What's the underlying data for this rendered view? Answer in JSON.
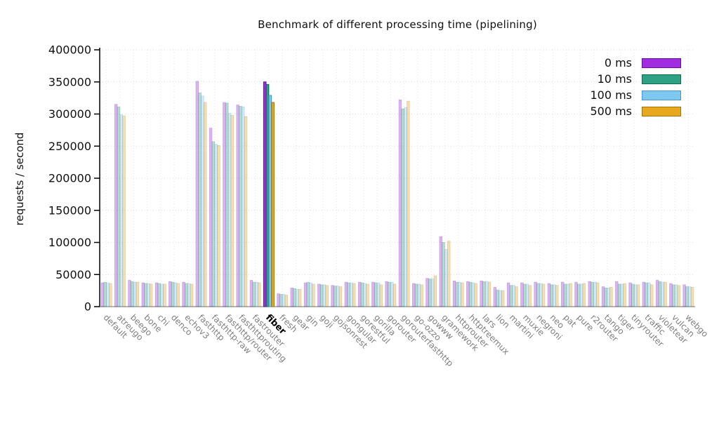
{
  "chart_data": {
    "type": "bar",
    "title": "Benchmark of different processing time (pipelining)",
    "ylabel": "requests / second",
    "ylim": [
      0,
      400000
    ],
    "ytick_step": 50000,
    "grid": true,
    "legend_position": "top-right",
    "highlight_category": "fiber",
    "categories": [
      "default",
      "atreugo",
      "beego",
      "bone",
      "chi",
      "denco",
      "echov3",
      "fasthttp",
      "fasthttp-raw",
      "fasthttp/router",
      "fasthttprouting",
      "fastrouter",
      "fiber",
      "fresh",
      "gear",
      "gin",
      "goji",
      "gojsonrest",
      "gongular",
      "gorestful",
      "gorilla",
      "gorouter",
      "gorouterfasthttp",
      "go-ozzo",
      "gowww",
      "gramework",
      "httprouter",
      "httptreemux",
      "lars",
      "lion",
      "martini",
      "muxie",
      "negroni",
      "neo",
      "pat",
      "pure",
      "r2router",
      "tango",
      "tiger",
      "tinyrouter",
      "traffic",
      "violetear",
      "vulcan",
      "webgo"
    ],
    "series": [
      {
        "name": "0 ms",
        "color": "#a22ce0",
        "border": "#6a0aa8",
        "values": [
          37000,
          315000,
          41000,
          37000,
          37000,
          39000,
          38000,
          351000,
          278000,
          318000,
          314000,
          41000,
          350000,
          20000,
          29000,
          37000,
          35000,
          33000,
          38000,
          38000,
          38000,
          39000,
          322000,
          36000,
          44000,
          109000,
          40000,
          39000,
          40000,
          30000,
          37000,
          37000,
          38000,
          36000,
          38000,
          38000,
          39000,
          31000,
          39000,
          37000,
          38000,
          41000,
          36000,
          34000
        ]
      },
      {
        "name": "10 ms",
        "color": "#2ea185",
        "border": "#0e6b4e",
        "values": [
          38000,
          311000,
          39000,
          36000,
          36000,
          38000,
          36000,
          333000,
          257000,
          317000,
          312000,
          38000,
          346000,
          19000,
          28000,
          38000,
          34000,
          32000,
          37000,
          37000,
          37000,
          38000,
          308000,
          35000,
          43000,
          100000,
          38000,
          38000,
          39000,
          26000,
          33000,
          35000,
          36000,
          34000,
          35000,
          35000,
          38000,
          29000,
          35000,
          35000,
          37000,
          39000,
          34000,
          31000
        ]
      },
      {
        "name": "100 ms",
        "color": "#7ec7ee",
        "border": "#4795d2",
        "values": [
          37000,
          299000,
          38000,
          36000,
          35000,
          37000,
          36000,
          328000,
          253000,
          301000,
          311000,
          38000,
          329000,
          19000,
          27000,
          37000,
          34000,
          32000,
          37000,
          36000,
          37000,
          38000,
          310000,
          35000,
          43000,
          89000,
          38000,
          37000,
          39000,
          25000,
          33000,
          35000,
          36000,
          34000,
          35000,
          35000,
          38000,
          29000,
          35000,
          34000,
          37000,
          38000,
          34000,
          31000
        ]
      },
      {
        "name": "500 ms",
        "color": "#e7a71e",
        "border": "#a5750a",
        "values": [
          36000,
          297000,
          38000,
          35000,
          35000,
          36000,
          35000,
          318000,
          251000,
          298000,
          296000,
          37000,
          318000,
          18000,
          27000,
          35000,
          33000,
          31000,
          36000,
          35000,
          34000,
          35000,
          320000,
          34000,
          48000,
          102000,
          37000,
          36000,
          38000,
          25000,
          31000,
          33000,
          35000,
          33000,
          36000,
          36000,
          37000,
          30000,
          36000,
          34000,
          34000,
          38000,
          33000,
          30000
        ]
      }
    ]
  }
}
